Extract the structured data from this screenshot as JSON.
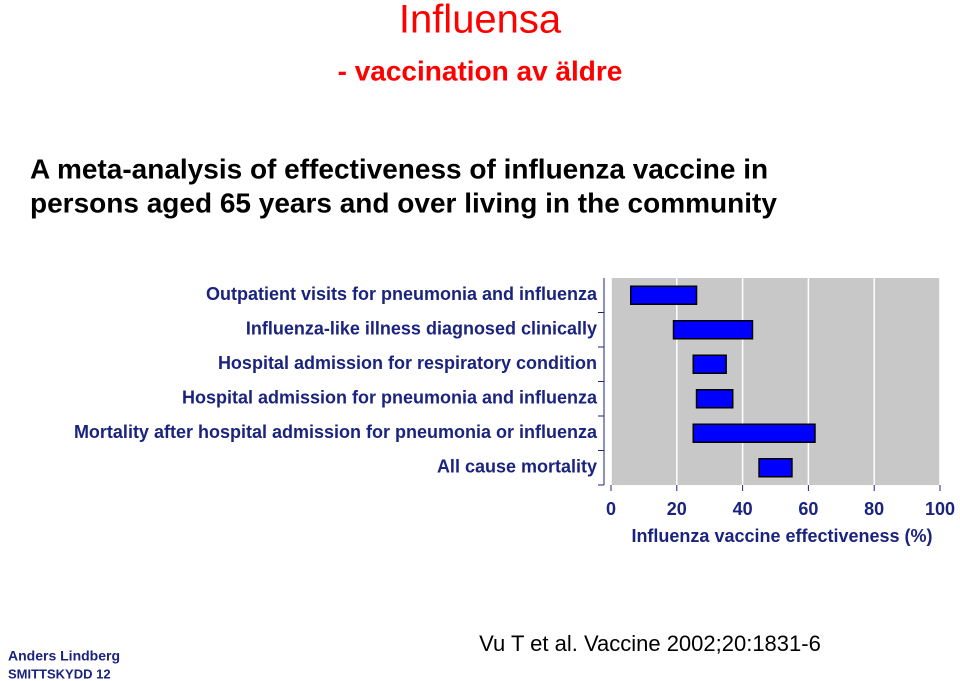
{
  "title": "Influensa",
  "subtitle": "- vaccination av äldre",
  "heading": [
    "A meta-analysis of effectiveness of influenza vaccine in",
    "persons aged 65 years and over living in the community"
  ],
  "chart_data": {
    "type": "range-bar",
    "categories": [
      "Outpatient visits for pneumonia and influenza",
      "Influenza-like illness diagnosed clinically",
      "Hospital admission for respiratory condition",
      "Hospital admission for pneumonia and influenza",
      "Mortality after hospital admission for pneumonia or influenza",
      "All cause mortality"
    ],
    "ranges": [
      [
        6,
        26
      ],
      [
        19,
        43
      ],
      [
        25,
        35
      ],
      [
        26,
        37
      ],
      [
        25,
        62
      ],
      [
        45,
        55
      ]
    ],
    "color": "#0000ff",
    "xlabel": "Influenza vaccine effectiveness (%)",
    "xlim": [
      0,
      100
    ],
    "xticks": [
      0,
      20,
      40,
      60,
      80,
      100
    ],
    "grid": true
  },
  "citation": "Vu T et al. Vaccine 2002;20:1831-6",
  "footer": {
    "author": "Anders Lindberg",
    "org": "SMITTSKYDD 12"
  }
}
